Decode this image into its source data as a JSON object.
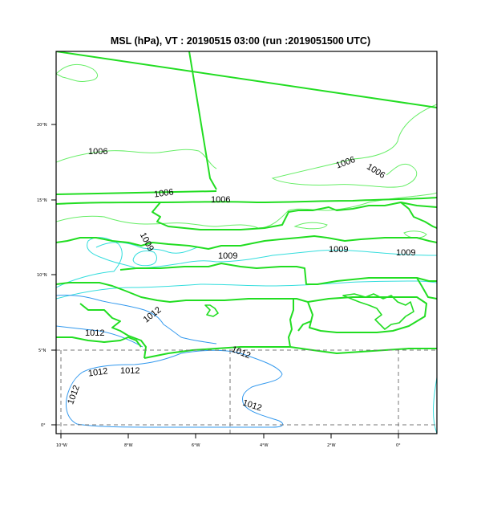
{
  "title": "MSL (hPa),  VT : 20190515  03:00 (run :2019051500 UTC)",
  "colors": {
    "border": "#22dd22",
    "contour_1006": "#66ee66",
    "contour_1009": "#33dddd",
    "contour_1012": "#3399ee",
    "grid": "#777777",
    "frame": "#000000"
  },
  "axes": {
    "lon_labels": [
      "10°W",
      "8°W",
      "6°W",
      "4°W",
      "2°W",
      "0°"
    ],
    "lat_labels": [
      "20°N",
      "15°N",
      "10°N",
      "5°N",
      "0°"
    ],
    "lon_range": [
      -10.1,
      1.2
    ],
    "lat_range": [
      -0.6,
      24.5
    ]
  },
  "contour_labels": {
    "c1006": [
      "1006",
      "1006",
      "1006",
      "1006",
      "1006"
    ],
    "c1009": [
      "1009",
      "1009",
      "1009",
      "1009"
    ],
    "c1012": [
      "1012",
      "1012",
      "1012",
      "1012",
      "1012",
      "1012",
      "1012"
    ]
  }
}
